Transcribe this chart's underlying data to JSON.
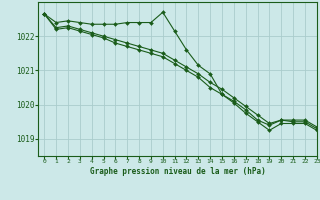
{
  "background_color": "#cce8e8",
  "grid_color": "#aacccc",
  "line_color": "#1a5c1a",
  "title": "Graphe pression niveau de la mer (hPa)",
  "xlim": [
    -0.5,
    23
  ],
  "ylim": [
    1018.5,
    1023.0
  ],
  "yticks": [
    1019,
    1020,
    1021,
    1022
  ],
  "xticks": [
    0,
    1,
    2,
    3,
    4,
    5,
    6,
    7,
    8,
    9,
    10,
    11,
    12,
    13,
    14,
    15,
    16,
    17,
    18,
    19,
    20,
    21,
    22,
    23
  ],
  "series": [
    {
      "x": [
        0,
        1,
        2,
        3,
        4,
        5,
        6,
        7,
        8,
        9,
        10,
        11,
        12,
        13,
        14,
        15,
        16,
        17,
        18,
        19,
        20,
        21,
        22,
        23
      ],
      "y": [
        1022.65,
        1022.4,
        1022.45,
        1022.4,
        1022.35,
        1022.35,
        1022.35,
        1022.4,
        1022.4,
        1022.4,
        1022.7,
        1022.15,
        1021.6,
        1021.15,
        1020.9,
        1020.3,
        1020.1,
        1019.85,
        1019.55,
        1019.4,
        1019.55,
        1019.55,
        1019.55,
        1019.35
      ],
      "marker": "D",
      "markersize": 2.0
    },
    {
      "x": [
        0,
        1,
        2,
        3,
        4,
        5,
        6,
        7,
        8,
        9,
        10,
        11,
        12,
        13,
        14,
        15,
        16,
        17,
        18,
        19,
        20,
        21,
        22,
        23
      ],
      "y": [
        1022.65,
        1022.25,
        1022.3,
        1022.2,
        1022.1,
        1022.0,
        1021.9,
        1021.8,
        1021.7,
        1021.6,
        1021.5,
        1021.3,
        1021.1,
        1020.9,
        1020.65,
        1020.45,
        1020.2,
        1019.95,
        1019.7,
        1019.45,
        1019.55,
        1019.5,
        1019.5,
        1019.3
      ],
      "marker": "D",
      "markersize": 2.0
    },
    {
      "x": [
        0,
        1,
        2,
        3,
        4,
        5,
        6,
        7,
        8,
        9,
        10,
        11,
        12,
        13,
        14,
        15,
        16,
        17,
        18,
        19,
        20,
        21,
        22,
        23
      ],
      "y": [
        1022.65,
        1022.2,
        1022.25,
        1022.15,
        1022.05,
        1021.95,
        1021.8,
        1021.7,
        1021.6,
        1021.5,
        1021.4,
        1021.2,
        1021.0,
        1020.8,
        1020.5,
        1020.3,
        1020.05,
        1019.75,
        1019.5,
        1019.25,
        1019.45,
        1019.45,
        1019.45,
        1019.25
      ],
      "marker": "D",
      "markersize": 2.0
    }
  ]
}
